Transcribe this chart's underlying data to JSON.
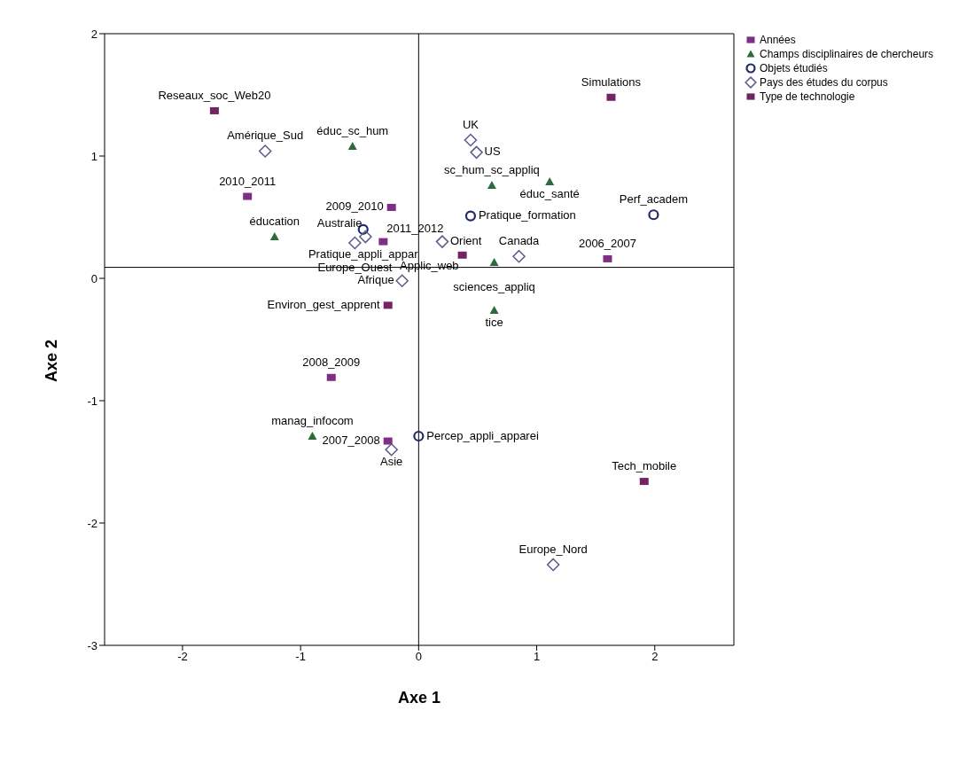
{
  "chart_data": {
    "type": "scatter",
    "xlabel": "Axe 1",
    "ylabel": "Axe 2",
    "xlim": [
      -2.66,
      2.67
    ],
    "ylim": [
      -3,
      2
    ],
    "xticks": [
      -2,
      -1,
      0,
      1,
      2
    ],
    "yticks": [
      -3,
      -2,
      -1,
      0,
      1,
      2
    ],
    "grid": false,
    "legend": "top right",
    "ref_lines": [
      {
        "axis": "x",
        "value": 0,
        "color": "#000000"
      },
      {
        "axis": "y",
        "value": 0.09,
        "color": "#000000"
      }
    ],
    "series": [
      {
        "name": "Années",
        "color": "#7e2f84",
        "marker": "square",
        "x": [
          -1.45,
          -0.23,
          -0.3,
          -0.74,
          -0.26,
          1.6
        ],
        "values": [
          0.67,
          0.58,
          0.3,
          -0.81,
          -1.33,
          0.16
        ],
        "value_labels": [
          "2010_2011",
          "2009_2010",
          "2011_2012",
          "2008_2009",
          "2007_2008",
          "2006_2007"
        ]
      },
      {
        "name": "Champs disciplinaires de chercheurs",
        "color": "#2e6b3a",
        "marker": "triangle",
        "x": [
          -0.56,
          -1.22,
          0.62,
          1.11,
          0.64,
          0.64,
          -0.9
        ],
        "values": [
          1.08,
          0.34,
          0.76,
          0.79,
          0.13,
          -0.26,
          -1.29
        ],
        "value_labels": [
          "éduc_sc_hum",
          "éducation",
          "sc_hum_sc_appliq",
          "éduc_santé",
          "sciences_appliq",
          "tice",
          "manag_infocom"
        ]
      },
      {
        "name": "Objets étudiés",
        "color": "#1f2a6b",
        "marker": "circle",
        "x": [
          -0.47,
          0.44,
          1.99,
          0.0
        ],
        "values": [
          0.4,
          0.51,
          0.52,
          -1.29
        ],
        "value_labels": [
          "Pratique_appli_appar",
          "Pratique_formation",
          "Perf_academ",
          "Percep_appli_apparei"
        ]
      },
      {
        "name": "Pays des études du corpus",
        "color": "#5a5a8c",
        "marker": "diamond",
        "x": [
          -1.3,
          0.44,
          0.49,
          -0.45,
          -0.54,
          0.2,
          -0.14,
          0.85,
          -0.23,
          1.14
        ],
        "values": [
          1.04,
          1.13,
          1.03,
          0.34,
          0.29,
          0.3,
          -0.02,
          0.18,
          -1.4,
          -2.34
        ],
        "value_labels": [
          "Amérique_Sud",
          "UK",
          "US",
          "Australie",
          "Europe_Ouest",
          "Orient",
          "Afrique",
          "Canada",
          "Asie",
          "Europe_Nord"
        ]
      },
      {
        "name": "Type de technologie",
        "color": "#742463",
        "marker": "square",
        "x": [
          -1.73,
          1.63,
          -0.26,
          0.37,
          1.91
        ],
        "values": [
          1.37,
          1.48,
          -0.22,
          0.19,
          -1.66
        ],
        "value_labels": [
          "Reseaux_soc_Web20",
          "Simulations",
          "Environ_gest_apprent",
          "Applic_web",
          "Tech_mobile"
        ]
      }
    ]
  }
}
